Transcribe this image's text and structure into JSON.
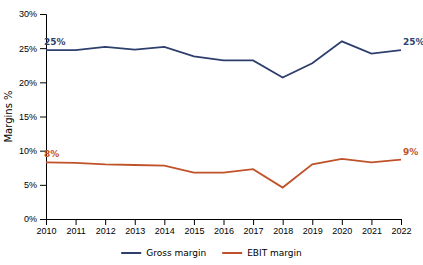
{
  "chart_data": {
    "type": "line",
    "y_label": "Margins %",
    "x": [
      2010,
      2011,
      2012,
      2013,
      2014,
      2015,
      2016,
      2017,
      2018,
      2019,
      2020,
      2021,
      2022
    ],
    "series": [
      {
        "name": "Gross margin",
        "color": "#2E3F6E",
        "values": [
          0.247,
          0.247,
          0.252,
          0.248,
          0.252,
          0.238,
          0.232,
          0.232,
          0.207,
          0.228,
          0.26,
          0.242,
          0.247
        ]
      },
      {
        "name": "EBIT margin",
        "color": "#C0522A",
        "values": [
          0.083,
          0.082,
          0.08,
          0.079,
          0.078,
          0.068,
          0.068,
          0.073,
          0.046,
          0.08,
          0.088,
          0.083,
          0.087
        ]
      }
    ],
    "xlim": [
      2010,
      2022
    ],
    "xticks": [
      2010,
      2011,
      2012,
      2013,
      2014,
      2015,
      2016,
      2017,
      2018,
      2019,
      2020,
      2021,
      2022
    ],
    "ylim": [
      0,
      0.3
    ],
    "yticks": [
      {
        "value": 0,
        "label": "0%"
      },
      {
        "value": 0.05,
        "label": "5%"
      },
      {
        "value": 0.1,
        "label": "10%"
      },
      {
        "value": 0.15,
        "label": "15%"
      },
      {
        "value": 0.2,
        "label": "20%"
      },
      {
        "value": 0.25,
        "label": "25%"
      },
      {
        "value": 0.3,
        "label": "30%"
      }
    ],
    "annotations": [
      {
        "text": "25%",
        "x": 2010,
        "y": 0.247,
        "color": "#2E3F6E"
      },
      {
        "text": "25%",
        "x": 2022,
        "y": 0.247,
        "color": "#2E3F6E"
      },
      {
        "text": "8%",
        "x": 2010,
        "y": 0.083,
        "color": "#C0522A"
      },
      {
        "text": "9%",
        "x": 2022,
        "y": 0.087,
        "color": "#C0522A"
      }
    ],
    "grid": false,
    "legend": "bottom"
  }
}
